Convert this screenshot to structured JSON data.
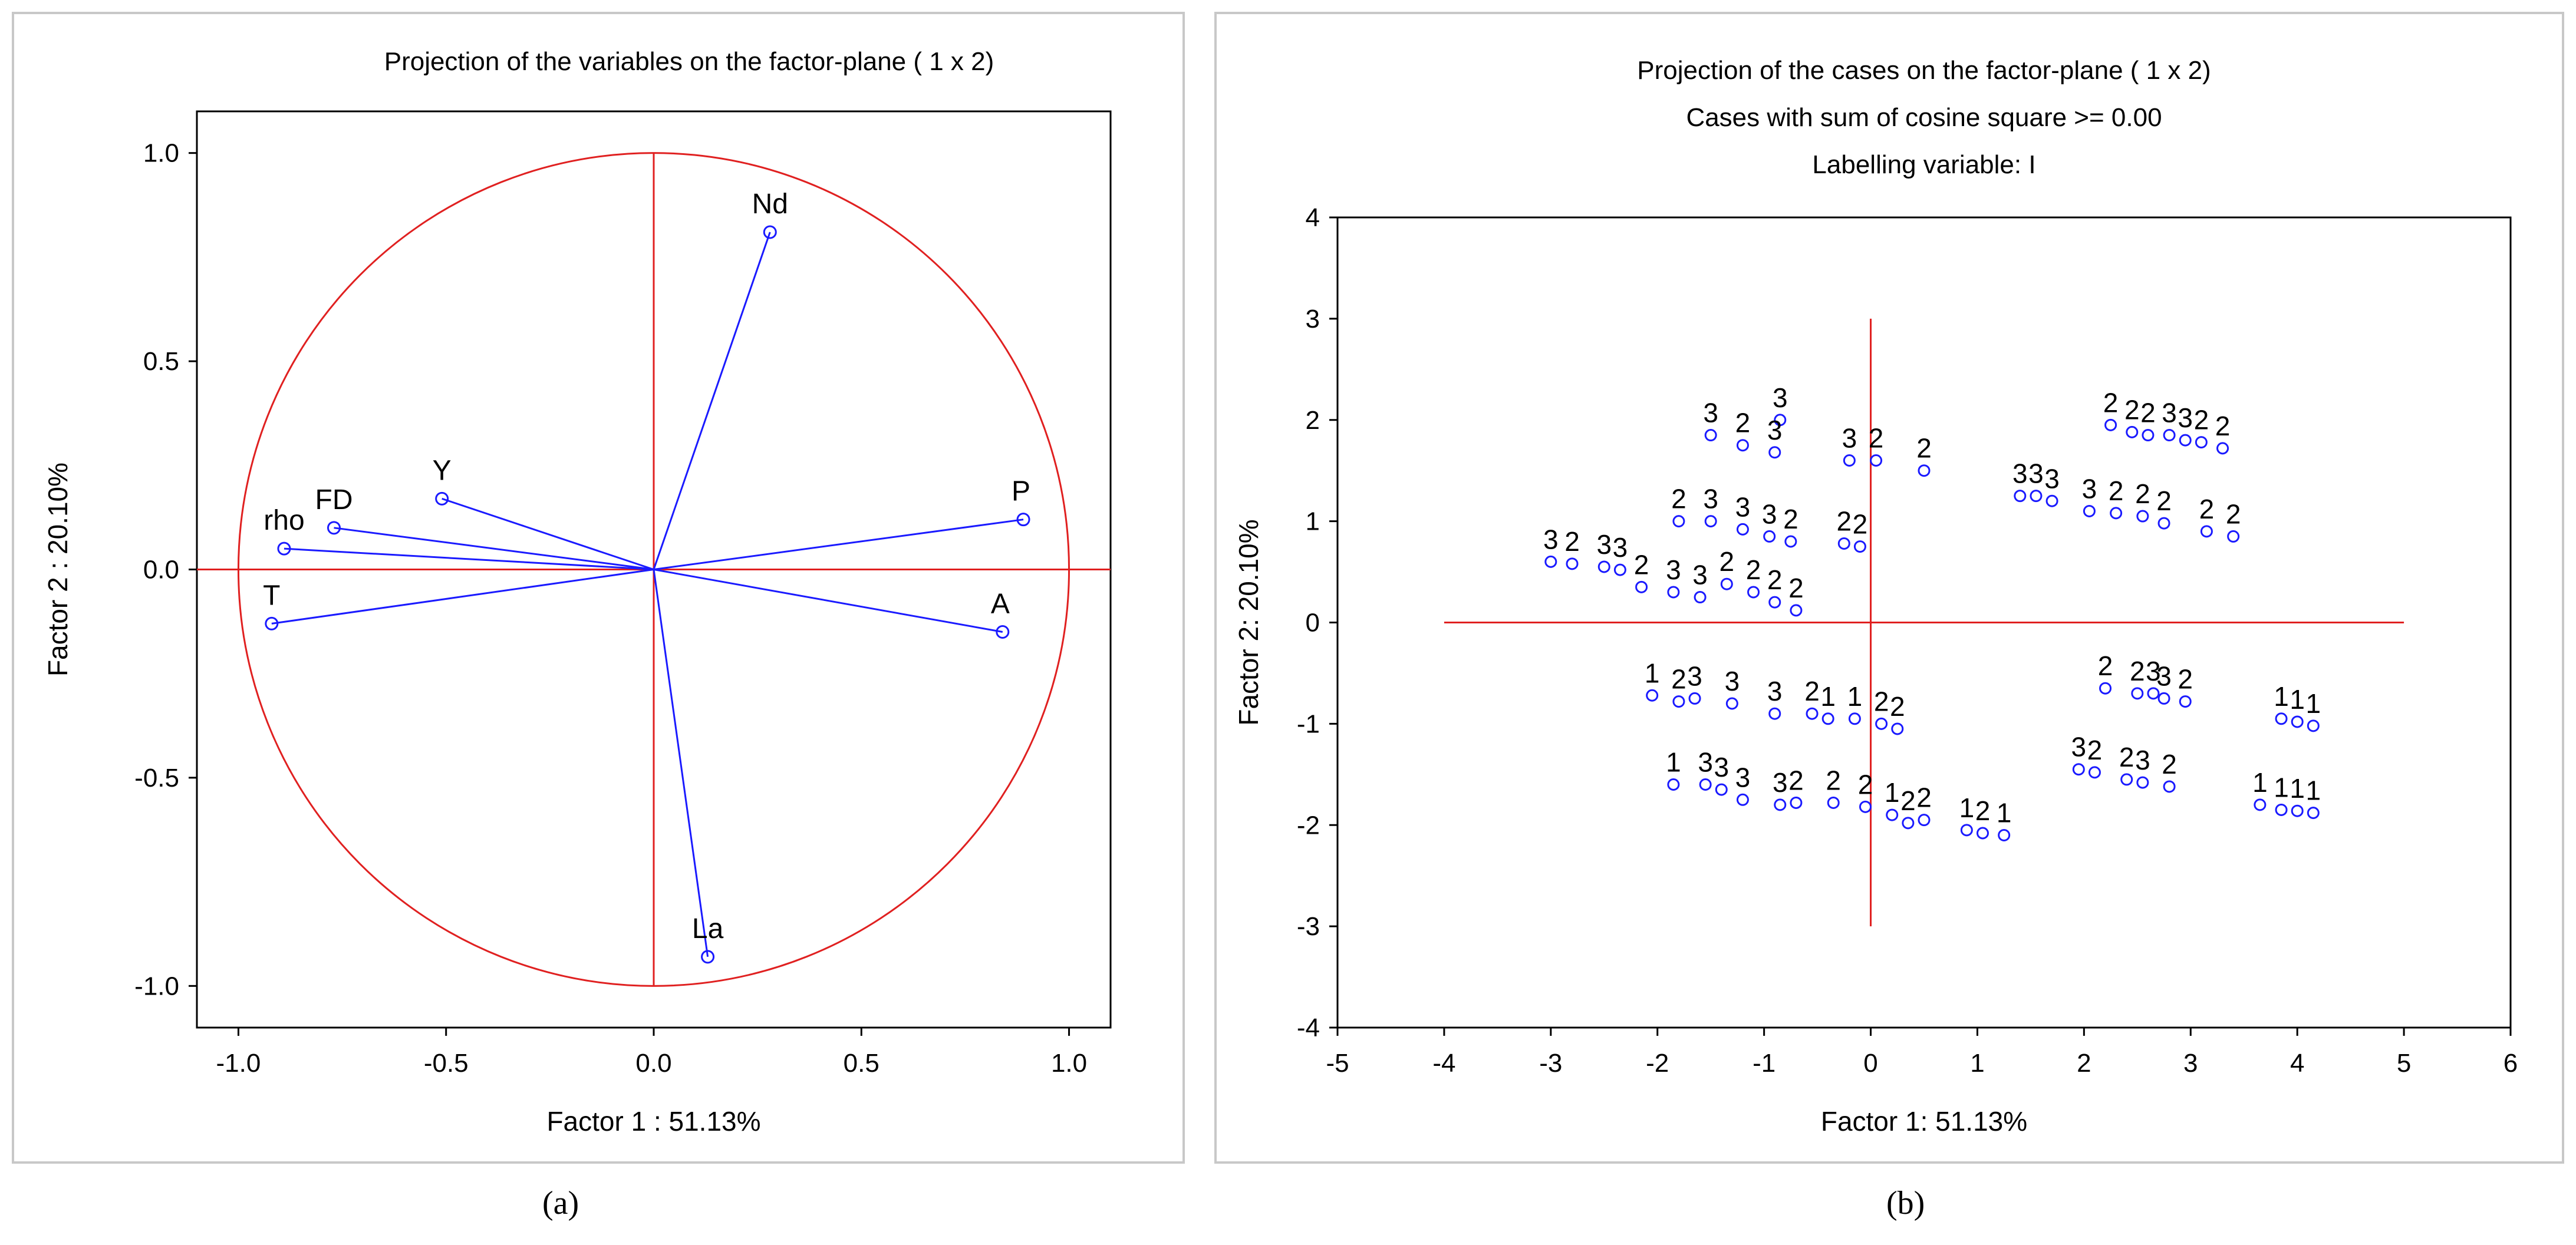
{
  "chart_data": [
    {
      "type": "scatter",
      "panel": "a",
      "caption": "(a)",
      "title": "Projection of the variables on the factor-plane (  1 x   2)",
      "xlabel": "Factor 1 : 51.13%",
      "ylabel": "Factor 2 : 20.10%",
      "xlim": [
        -1.1,
        1.1
      ],
      "ylim": [
        -1.1,
        1.1
      ],
      "x_ticks": [
        -1.0,
        -0.5,
        0.0,
        0.5,
        1.0
      ],
      "x_tick_labels": [
        "-1.0",
        "-0.5",
        "0.0",
        "0.5",
        "1.0"
      ],
      "y_ticks": [
        1.0,
        0.5,
        0.0,
        -0.5,
        -1.0
      ],
      "y_tick_labels": [
        "1.0",
        "0.5",
        "0.0",
        "-0.5",
        "-1.0"
      ],
      "unit_circle": true,
      "grid": false,
      "colors": {
        "circle": "#e02020",
        "vector": "#1a1aff",
        "axes": "#e02020"
      },
      "points": [
        {
          "label": "Nd",
          "x": 0.28,
          "y": 0.81
        },
        {
          "label": "P",
          "x": 0.89,
          "y": 0.12
        },
        {
          "label": "A",
          "x": 0.84,
          "y": -0.15
        },
        {
          "label": "La",
          "x": 0.13,
          "y": -0.93
        },
        {
          "label": "T",
          "x": -0.92,
          "y": -0.13
        },
        {
          "label": "rho",
          "x": -0.89,
          "y": 0.05
        },
        {
          "label": "FD",
          "x": -0.77,
          "y": 0.1
        },
        {
          "label": "Y",
          "x": -0.51,
          "y": 0.17
        }
      ]
    },
    {
      "type": "scatter",
      "panel": "b",
      "caption": "(b)",
      "title": "Projection of the cases on the factor-plane (  1 x   2)",
      "subtitle": "Cases with sum of cosine square >=   0.00",
      "subtitle2": "Labelling variable: I",
      "xlabel": "Factor 1: 51.13%",
      "ylabel": "Factor 2: 20.10%",
      "xlim": [
        -5,
        6
      ],
      "ylim": [
        -4,
        4
      ],
      "x_ticks": [
        -5,
        -4,
        -3,
        -2,
        -1,
        0,
        1,
        2,
        3,
        4,
        5,
        6
      ],
      "x_tick_labels": [
        "-5",
        "-4",
        "-3",
        "-2",
        "-1",
        "0",
        "1",
        "2",
        "3",
        "4",
        "5",
        "6"
      ],
      "y_ticks": [
        4,
        3,
        2,
        1,
        0,
        -1,
        -2,
        -3,
        -4
      ],
      "y_tick_labels": [
        "4",
        "3",
        "2",
        "1",
        "0",
        "-1",
        "-2",
        "-3",
        "-4"
      ],
      "axis_lines": {
        "x_from": -4,
        "x_to": 5,
        "y_from": -3,
        "y_to": 3
      },
      "grid": false,
      "colors": {
        "point": "#1a1aff",
        "axes": "#e02020"
      },
      "points": [
        {
          "label": "3",
          "x": -0.85,
          "y": 2.0
        },
        {
          "label": "3",
          "x": -1.5,
          "y": 1.85
        },
        {
          "label": "2",
          "x": -1.2,
          "y": 1.75
        },
        {
          "label": "3",
          "x": -0.9,
          "y": 1.68
        },
        {
          "label": "3",
          "x": -0.2,
          "y": 1.6
        },
        {
          "label": "2",
          "x": 0.05,
          "y": 1.6
        },
        {
          "label": "2",
          "x": 0.5,
          "y": 1.5
        },
        {
          "label": "2",
          "x": 2.25,
          "y": 1.95
        },
        {
          "label": "2",
          "x": 2.45,
          "y": 1.88
        },
        {
          "label": "2",
          "x": 2.6,
          "y": 1.85
        },
        {
          "label": "3",
          "x": 2.8,
          "y": 1.85
        },
        {
          "label": "3",
          "x": 2.95,
          "y": 1.8
        },
        {
          "label": "2",
          "x": 3.1,
          "y": 1.78
        },
        {
          "label": "2",
          "x": 3.3,
          "y": 1.72
        },
        {
          "label": "3",
          "x": 1.4,
          "y": 1.25
        },
        {
          "label": "3",
          "x": 1.55,
          "y": 1.25
        },
        {
          "label": "3",
          "x": 1.7,
          "y": 1.2
        },
        {
          "label": "3",
          "x": 2.05,
          "y": 1.1
        },
        {
          "label": "2",
          "x": 2.3,
          "y": 1.08
        },
        {
          "label": "2",
          "x": 2.55,
          "y": 1.05
        },
        {
          "label": "2",
          "x": 2.75,
          "y": 0.98
        },
        {
          "label": "2",
          "x": 3.15,
          "y": 0.9
        },
        {
          "label": "2",
          "x": 3.4,
          "y": 0.85
        },
        {
          "label": "2",
          "x": -1.8,
          "y": 1.0
        },
        {
          "label": "3",
          "x": -1.5,
          "y": 1.0
        },
        {
          "label": "3",
          "x": -1.2,
          "y": 0.92
        },
        {
          "label": "3",
          "x": -0.95,
          "y": 0.85
        },
        {
          "label": "2",
          "x": -0.75,
          "y": 0.8
        },
        {
          "label": "2",
          "x": -0.25,
          "y": 0.78
        },
        {
          "label": "2",
          "x": -0.1,
          "y": 0.75
        },
        {
          "label": "3",
          "x": -3.0,
          "y": 0.6
        },
        {
          "label": "2",
          "x": -2.8,
          "y": 0.58
        },
        {
          "label": "3",
          "x": -2.5,
          "y": 0.55
        },
        {
          "label": "3",
          "x": -2.35,
          "y": 0.52
        },
        {
          "label": "2",
          "x": -2.15,
          "y": 0.35
        },
        {
          "label": "3",
          "x": -1.85,
          "y": 0.3
        },
        {
          "label": "3",
          "x": -1.6,
          "y": 0.25
        },
        {
          "label": "2",
          "x": -1.35,
          "y": 0.38
        },
        {
          "label": "2",
          "x": -1.1,
          "y": 0.3
        },
        {
          "label": "2",
          "x": -0.9,
          "y": 0.2
        },
        {
          "label": "2",
          "x": -0.7,
          "y": 0.12
        },
        {
          "label": "1",
          "x": -2.05,
          "y": -0.72
        },
        {
          "label": "2",
          "x": -1.8,
          "y": -0.78
        },
        {
          "label": "3",
          "x": -1.65,
          "y": -0.75
        },
        {
          "label": "3",
          "x": -1.3,
          "y": -0.8
        },
        {
          "label": "3",
          "x": -0.9,
          "y": -0.9
        },
        {
          "label": "2",
          "x": -0.55,
          "y": -0.9
        },
        {
          "label": "1",
          "x": -0.4,
          "y": -0.95
        },
        {
          "label": "1",
          "x": -0.15,
          "y": -0.95
        },
        {
          "label": "2",
          "x": 0.1,
          "y": -1.0
        },
        {
          "label": "2",
          "x": 0.25,
          "y": -1.05
        },
        {
          "label": "2",
          "x": 2.2,
          "y": -0.65
        },
        {
          "label": "2",
          "x": 2.5,
          "y": -0.7
        },
        {
          "label": "3",
          "x": 2.65,
          "y": -0.7
        },
        {
          "label": "3",
          "x": 2.75,
          "y": -0.75
        },
        {
          "label": "2",
          "x": 2.95,
          "y": -0.78
        },
        {
          "label": "1",
          "x": 3.85,
          "y": -0.95
        },
        {
          "label": "1",
          "x": 4.0,
          "y": -0.98
        },
        {
          "label": "1",
          "x": 4.15,
          "y": -1.02
        },
        {
          "label": "1",
          "x": -1.85,
          "y": -1.6
        },
        {
          "label": "3",
          "x": -1.55,
          "y": -1.6
        },
        {
          "label": "3",
          "x": -1.4,
          "y": -1.65
        },
        {
          "label": "3",
          "x": -1.2,
          "y": -1.75
        },
        {
          "label": "3",
          "x": -0.85,
          "y": -1.8
        },
        {
          "label": "2",
          "x": -0.7,
          "y": -1.78
        },
        {
          "label": "2",
          "x": -0.35,
          "y": -1.78
        },
        {
          "label": "2",
          "x": -0.05,
          "y": -1.82
        },
        {
          "label": "1",
          "x": 0.2,
          "y": -1.9
        },
        {
          "label": "2",
          "x": 0.35,
          "y": -1.98
        },
        {
          "label": "2",
          "x": 0.5,
          "y": -1.95
        },
        {
          "label": "1",
          "x": 0.9,
          "y": -2.05
        },
        {
          "label": "2",
          "x": 1.05,
          "y": -2.08
        },
        {
          "label": "1",
          "x": 1.25,
          "y": -2.1
        },
        {
          "label": "3",
          "x": 1.95,
          "y": -1.45
        },
        {
          "label": "2",
          "x": 2.1,
          "y": -1.48
        },
        {
          "label": "2",
          "x": 2.4,
          "y": -1.55
        },
        {
          "label": "3",
          "x": 2.55,
          "y": -1.58
        },
        {
          "label": "2",
          "x": 2.8,
          "y": -1.62
        },
        {
          "label": "1",
          "x": 3.65,
          "y": -1.8
        },
        {
          "label": "1",
          "x": 3.85,
          "y": -1.85
        },
        {
          "label": "1",
          "x": 4.0,
          "y": -1.86
        },
        {
          "label": "1",
          "x": 4.15,
          "y": -1.88
        }
      ]
    }
  ]
}
